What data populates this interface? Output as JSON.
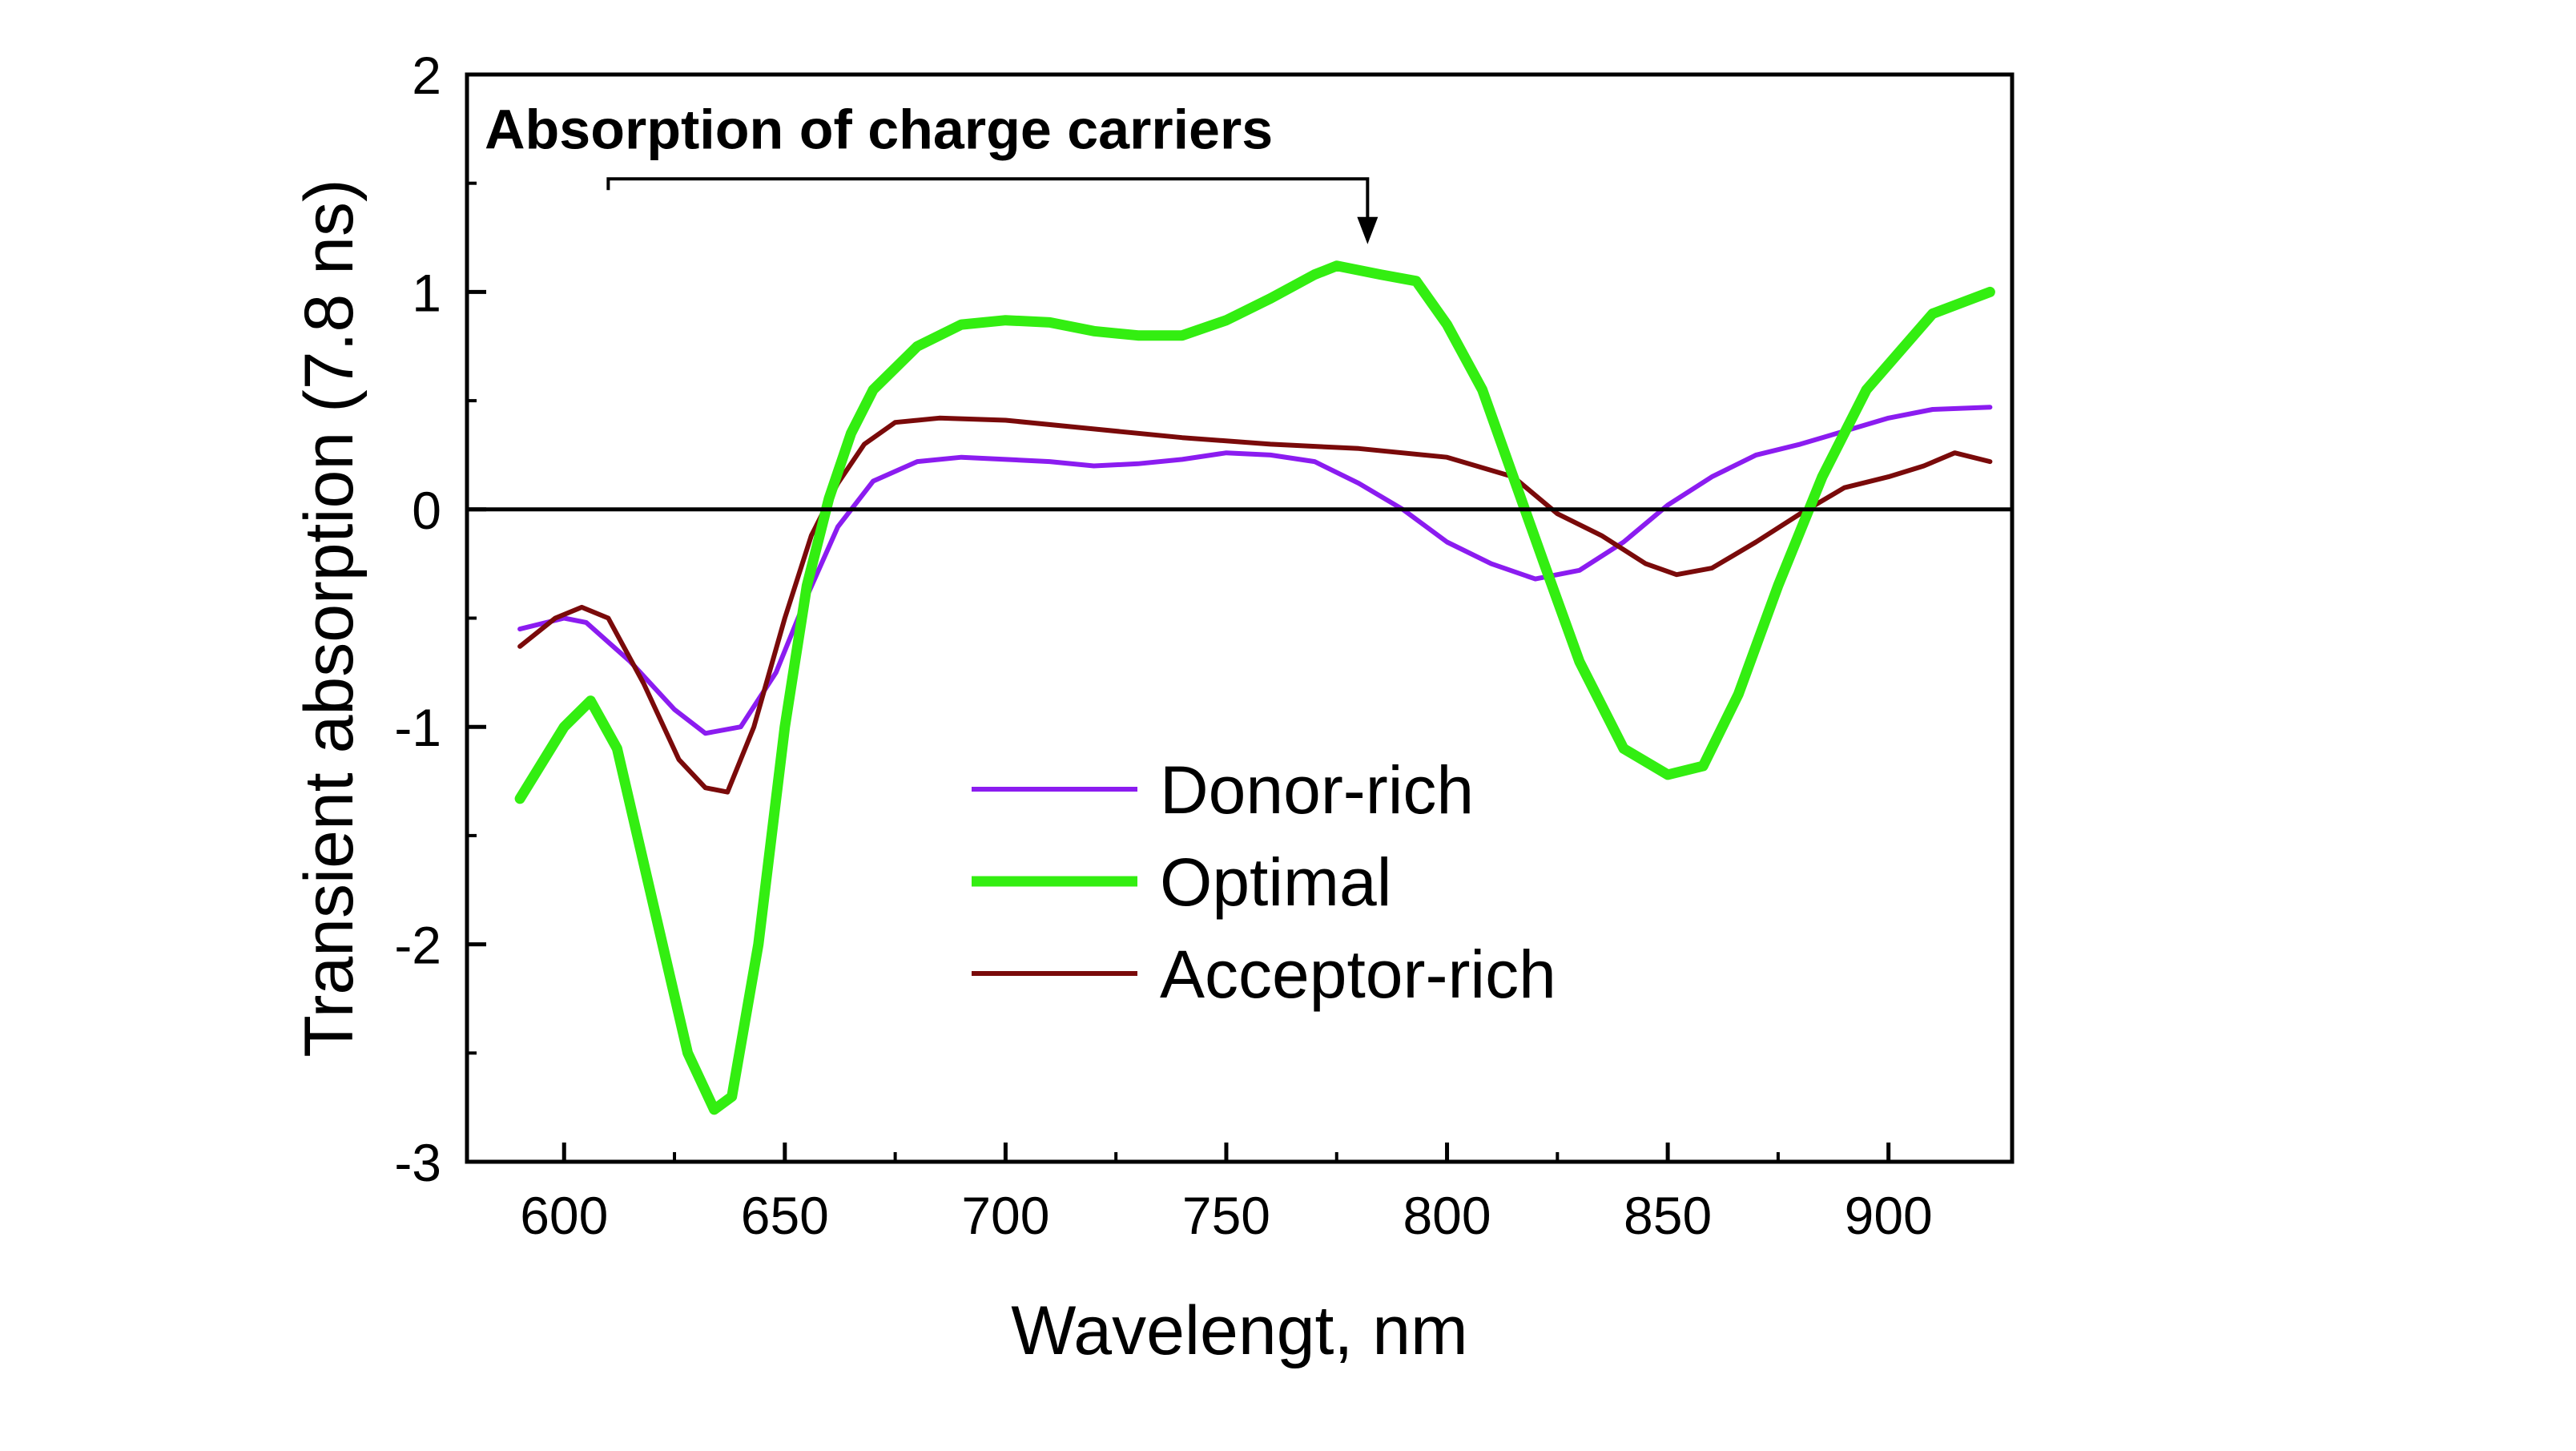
{
  "chart_data": {
    "type": "line",
    "title": "",
    "xlabel": "Wavelengt, nm",
    "ylabel": "Transient absorption (7.8 ns)",
    "xlim": [
      578,
      928
    ],
    "ylim": [
      -3,
      2
    ],
    "xticks": [
      600,
      650,
      700,
      750,
      800,
      850,
      900
    ],
    "xtick_labels": [
      "600",
      "650",
      "700",
      "750",
      "800",
      "850",
      "900"
    ],
    "yticks": [
      -3,
      -2,
      -1,
      0,
      1,
      2
    ],
    "ytick_labels": [
      "-3",
      "-2",
      "-1",
      "0",
      "1",
      "2"
    ],
    "grid": false,
    "legend_position": "center-bottom",
    "annotation": {
      "text": "Absorption of charge carriers",
      "x_start": 610,
      "x_arrow": 782,
      "y": 1.52,
      "y_arrow_tip": 1.22
    },
    "series": [
      {
        "name": "Donor-rich",
        "color": "#8b1cf0",
        "x": [
          590,
          600,
          605,
          615,
          625,
          632,
          640,
          648,
          655,
          662,
          670,
          680,
          690,
          700,
          710,
          720,
          730,
          740,
          750,
          760,
          770,
          780,
          790,
          800,
          810,
          820,
          830,
          840,
          850,
          860,
          870,
          880,
          890,
          900,
          910,
          923
        ],
        "y": [
          -0.55,
          -0.5,
          -0.52,
          -0.7,
          -0.92,
          -1.03,
          -1.0,
          -0.75,
          -0.4,
          -0.08,
          0.13,
          0.22,
          0.24,
          0.23,
          0.22,
          0.2,
          0.21,
          0.23,
          0.26,
          0.25,
          0.22,
          0.12,
          0.0,
          -0.15,
          -0.25,
          -0.32,
          -0.28,
          -0.15,
          0.02,
          0.15,
          0.25,
          0.3,
          0.36,
          0.42,
          0.46,
          0.47
        ]
      },
      {
        "name": "Optimal",
        "color": "#33ee11",
        "x": [
          590,
          600,
          606,
          612,
          620,
          628,
          634,
          638,
          644,
          650,
          655,
          660,
          665,
          670,
          680,
          690,
          700,
          710,
          720,
          730,
          740,
          750,
          760,
          770,
          775,
          785,
          793,
          800,
          808,
          815,
          822,
          830,
          840,
          850,
          858,
          866,
          875,
          885,
          895,
          910,
          923
        ],
        "y": [
          -1.33,
          -1.0,
          -0.88,
          -1.1,
          -1.8,
          -2.5,
          -2.76,
          -2.7,
          -2.0,
          -1.0,
          -0.35,
          0.05,
          0.35,
          0.55,
          0.75,
          0.85,
          0.87,
          0.86,
          0.82,
          0.8,
          0.8,
          0.87,
          0.97,
          1.08,
          1.12,
          1.08,
          1.05,
          0.85,
          0.55,
          0.15,
          -0.25,
          -0.7,
          -1.1,
          -1.22,
          -1.18,
          -0.85,
          -0.35,
          0.15,
          0.55,
          0.9,
          1.0
        ]
      },
      {
        "name": "Acceptor-rich",
        "color": "#7a0a0a",
        "x": [
          590,
          598,
          604,
          610,
          618,
          626,
          632,
          637,
          643,
          650,
          656,
          662,
          668,
          675,
          685,
          700,
          720,
          740,
          760,
          780,
          800,
          815,
          825,
          835,
          845,
          852,
          860,
          870,
          880,
          890,
          900,
          908,
          915,
          923
        ],
        "y": [
          -0.63,
          -0.5,
          -0.45,
          -0.5,
          -0.8,
          -1.15,
          -1.28,
          -1.3,
          -1.0,
          -0.5,
          -0.12,
          0.12,
          0.3,
          0.4,
          0.42,
          0.41,
          0.37,
          0.33,
          0.3,
          0.28,
          0.24,
          0.15,
          -0.02,
          -0.12,
          -0.25,
          -0.3,
          -0.27,
          -0.15,
          -0.02,
          0.1,
          0.15,
          0.2,
          0.26,
          0.22
        ]
      }
    ]
  }
}
